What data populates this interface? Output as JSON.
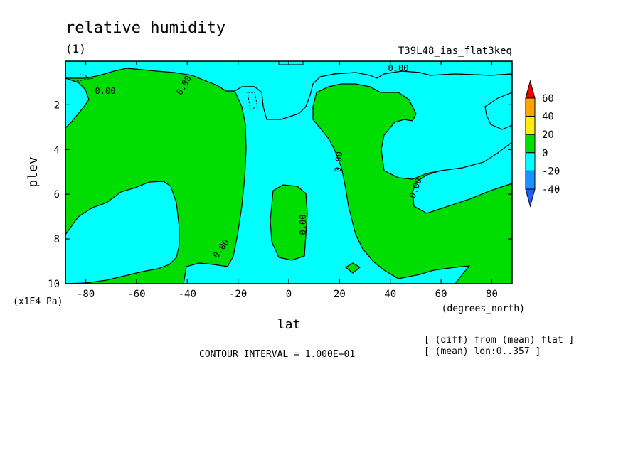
{
  "chart_data": {
    "type": "heatmap",
    "title": "relative humidity",
    "subtitle": "(1)",
    "run_label": "T39L48_ias_flat3keq",
    "xlabel": "lat",
    "x_units": "(degrees_north)",
    "ylabel": "plev",
    "y_units": "(x1E4 Pa)",
    "xlim": [
      -88,
      88
    ],
    "ylim": [
      10,
      0.05
    ],
    "x_ticks": [
      -80,
      -60,
      -40,
      -20,
      0,
      20,
      40,
      60,
      80
    ],
    "x_tick_labels": [
      "-80",
      "-60",
      "-40",
      "-20",
      "0",
      "20",
      "40",
      "60",
      "80"
    ],
    "y_ticks": [
      2,
      4,
      6,
      8,
      10
    ],
    "y_tick_labels": [
      "2",
      "4",
      "6",
      "8",
      "10"
    ],
    "contour_interval_text": "CONTOUR INTERVAL = 1.000E+01",
    "contour_label": "0.00",
    "notes": [
      "[ (diff) from (mean) flat ]",
      "[ (mean) lon:0..357 ]"
    ],
    "colorbar": {
      "levels": [
        -40,
        -20,
        0,
        20,
        40,
        60
      ],
      "level_labels": [
        "-40",
        "-20",
        "0",
        "20",
        "40",
        "60"
      ],
      "colors": [
        "#1e90ff",
        "#00ffff",
        "#00dd00",
        "#ffee00",
        "#ffa500",
        "#ee0000"
      ],
      "under_color": "#1e60ff",
      "over_color": "#ee0000"
    },
    "fill_colors": {
      "negative": "#00ffff",
      "positive": "#00dd00"
    }
  }
}
